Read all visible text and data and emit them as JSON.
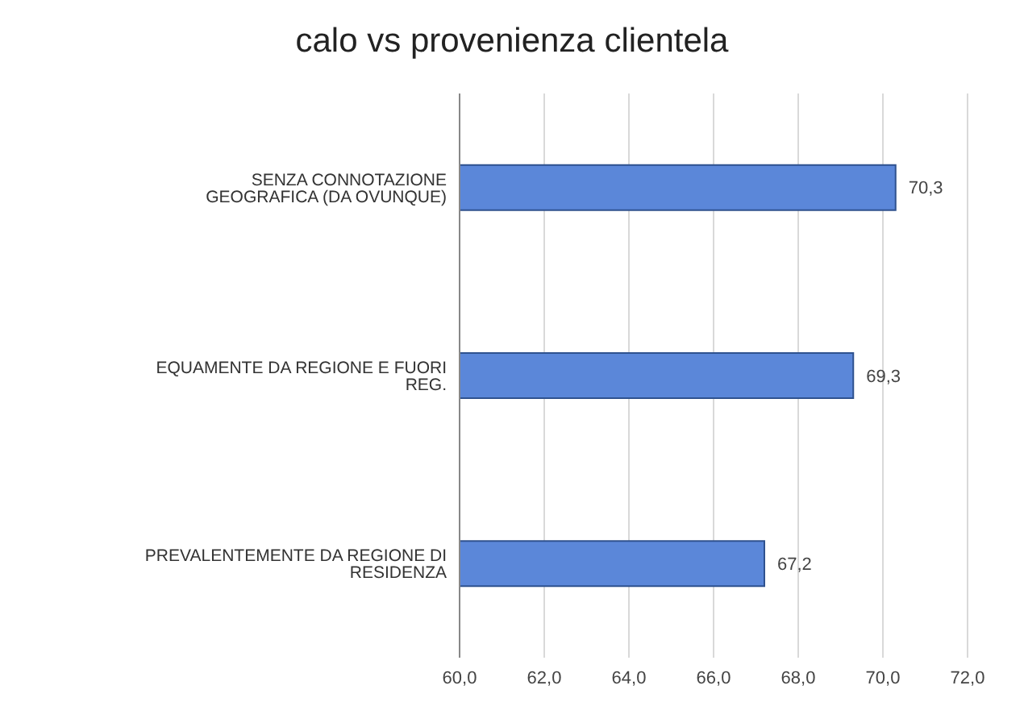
{
  "chart_data": {
    "type": "bar",
    "orientation": "horizontal",
    "title": "calo vs provenienza clientela",
    "categories": [
      "SENZA CONNOTAZIONE GEOGRAFICA (DA OVUNQUE)",
      "EQUAMENTE DA REGIONE E FUORI REG.",
      "PREVALENTEMENTE DA REGIONE DI RESIDENZA"
    ],
    "values": [
      70.3,
      69.3,
      67.2
    ],
    "value_labels": [
      "70,3",
      "69,3",
      "67,2"
    ],
    "color": "#5b87d9",
    "xlim": [
      60,
      72
    ],
    "xticks": [
      {
        "value": 60,
        "label": "60,0"
      },
      {
        "value": 62,
        "label": "62,0"
      },
      {
        "value": 64,
        "label": "64,0"
      },
      {
        "value": 66,
        "label": "66,0"
      },
      {
        "value": 68,
        "label": "68,0"
      },
      {
        "value": 70,
        "label": "70,0"
      },
      {
        "value": 72,
        "label": "72,0"
      }
    ],
    "grid": "x",
    "legend": false
  }
}
